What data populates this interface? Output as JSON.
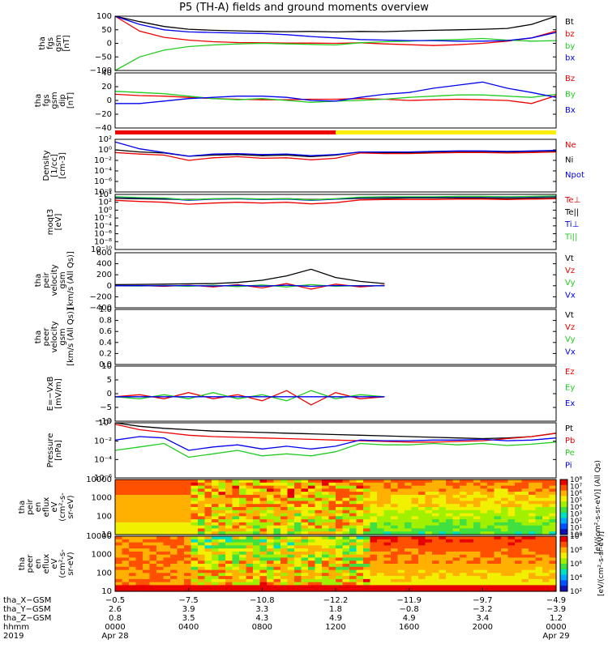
{
  "title": "P5 (TH-A) fields and ground moments overview",
  "colors": {
    "black": "#000000",
    "red": "#ee0000",
    "green": "#22cc22",
    "blue": "#0000ee",
    "yellow": "#ffee00"
  },
  "chart_data": [
    {
      "type": "line",
      "ylabel": [
        "tha",
        "fgs",
        "gsm",
        "[nT]"
      ],
      "yticks": [
        "100",
        "50",
        "0",
        "−50",
        "−100"
      ],
      "ylim": [
        -100,
        100
      ],
      "log": false,
      "series": [
        {
          "name": "Bt",
          "color": "#000000",
          "values": [
            100,
            80,
            62,
            52,
            48,
            46,
            44,
            43,
            44,
            42,
            44,
            43,
            46,
            48,
            50,
            52,
            55,
            70,
            100
          ]
        },
        {
          "name": "bz",
          "color": "#ee0000",
          "values": [
            100,
            45,
            22,
            12,
            6,
            3,
            2,
            1,
            1,
            0,
            2,
            -2,
            -5,
            -8,
            -5,
            0,
            8,
            20,
            45
          ]
        },
        {
          "name": "by",
          "color": "#22cc22",
          "values": [
            -100,
            -50,
            -25,
            -12,
            -6,
            -2,
            0,
            -2,
            -4,
            -6,
            2,
            6,
            8,
            12,
            14,
            18,
            12,
            8,
            10
          ]
        },
        {
          "name": "bx",
          "color": "#0000ee",
          "values": [
            100,
            70,
            50,
            42,
            40,
            38,
            36,
            32,
            25,
            20,
            14,
            12,
            10,
            10,
            8,
            8,
            10,
            20,
            40
          ]
        }
      ]
    },
    {
      "type": "line",
      "ylabel": [
        "tha",
        "fgs",
        "gsm",
        "dip",
        "[nT]"
      ],
      "yticks": [
        "40",
        "20",
        "0",
        "−20",
        "−40"
      ],
      "ylim": [
        -50,
        40
      ],
      "log": false,
      "series": [
        {
          "name": "Bz",
          "color": "#ee0000",
          "values": [
            5,
            3,
            2,
            0,
            -2,
            -3,
            -4,
            -4,
            -3,
            -3,
            -2,
            -3,
            -5,
            -4,
            -3,
            -4,
            -5,
            -10,
            3
          ]
        },
        {
          "name": "By",
          "color": "#22cc22",
          "values": [
            10,
            8,
            6,
            2,
            -2,
            -4,
            -2,
            -5,
            -8,
            -6,
            -5,
            -3,
            0,
            2,
            4,
            4,
            2,
            0,
            5
          ]
        },
        {
          "name": "Bx",
          "color": "#0000ee",
          "values": [
            -10,
            -10,
            -6,
            -2,
            0,
            2,
            2,
            0,
            -5,
            -6,
            0,
            5,
            8,
            15,
            20,
            25,
            15,
            8,
            0
          ]
        }
      ]
    },
    {
      "type": "line",
      "ylabel": [
        "Density",
        "[1/cc]",
        "[cm-3]"
      ],
      "yticks": [
        "10²",
        "10⁰",
        "10⁻²",
        "10⁻⁴",
        "10⁻⁶",
        "10⁻⁸"
      ],
      "ylim": [
        -8,
        2
      ],
      "log": true,
      "series": [
        {
          "name": "Ne",
          "color": "#ee0000",
          "values": [
            -0.5,
            -0.8,
            -1.0,
            -2.0,
            -1.5,
            -1.3,
            -1.6,
            -1.5,
            -1.9,
            -1.6,
            -0.6,
            -0.7,
            -0.7,
            -0.6,
            -0.5,
            -0.5,
            -0.6,
            -0.5,
            -0.4
          ]
        },
        {
          "name": "Ni",
          "color": "#000000",
          "values": [
            0.0,
            -0.4,
            -0.6,
            -1.2,
            -1.0,
            -0.9,
            -1.1,
            -1.0,
            -1.3,
            -1.0,
            -0.4,
            -0.5,
            -0.5,
            -0.4,
            -0.3,
            -0.3,
            -0.4,
            -0.3,
            -0.2
          ]
        },
        {
          "name": "Npot",
          "color": "#0000ee",
          "values": [
            1.5,
            0.2,
            -0.5,
            -1.2,
            -0.8,
            -0.7,
            -0.9,
            -0.8,
            -1.1,
            -0.9,
            -0.4,
            -0.4,
            -0.4,
            -0.3,
            -0.2,
            -0.2,
            -0.3,
            -0.2,
            -0.1
          ]
        }
      ]
    },
    {
      "type": "line",
      "ylabel": [
        "moqt3",
        "[eV]"
      ],
      "yticks": [
        "10⁴",
        "10²",
        "10⁰",
        "10⁻²",
        "10⁻⁴",
        "10⁻⁶",
        "10⁻⁸",
        "10⁻¹⁰"
      ],
      "ylim": [
        -10,
        4
      ],
      "log": true,
      "series": [
        {
          "name": "Te⊥",
          "color": "#ee0000",
          "values": [
            2.5,
            2.2,
            2.0,
            1.5,
            1.8,
            2.0,
            1.8,
            2.0,
            1.6,
            1.9,
            2.6,
            2.7,
            2.7,
            2.7,
            2.8,
            2.8,
            2.7,
            2.8,
            2.9
          ]
        },
        {
          "name": "Te||",
          "color": "#000000",
          "values": [
            3.0,
            2.9,
            2.8,
            2.7,
            2.8,
            2.9,
            2.8,
            2.9,
            2.7,
            2.8,
            3.0,
            3.0,
            3.1,
            3.1,
            3.1,
            3.1,
            3.0,
            3.1,
            3.2
          ]
        },
        {
          "name": "Ti⊥",
          "color": "#0000ee",
          "values": [
            3.3,
            3.1,
            3.0,
            2.5,
            2.8,
            2.9,
            2.7,
            2.8,
            2.5,
            2.8,
            3.2,
            3.3,
            3.3,
            3.3,
            3.4,
            3.4,
            3.3,
            3.4,
            3.5
          ]
        },
        {
          "name": "Ti||",
          "color": "#22cc22",
          "values": [
            3.4,
            3.2,
            3.1,
            2.6,
            2.9,
            3.0,
            2.8,
            2.9,
            2.6,
            2.9,
            3.3,
            3.4,
            3.4,
            3.4,
            3.5,
            3.5,
            3.4,
            3.5,
            3.6
          ]
        }
      ]
    },
    {
      "type": "line",
      "ylabel": [
        "tha",
        "peir",
        "velocity",
        "gsm",
        "[km/s (All Qs)]"
      ],
      "yticks": [
        "600",
        "400",
        "200",
        "0",
        "−200",
        "−400"
      ],
      "ylim": [
        -400,
        600
      ],
      "log": false,
      "series": [
        {
          "name": "Vt",
          "color": "#000000",
          "values": [
            20,
            25,
            30,
            35,
            40,
            60,
            100,
            180,
            300,
            150,
            80,
            40,
            null,
            null,
            null,
            null,
            null,
            null,
            null
          ]
        },
        {
          "name": "Vz",
          "color": "#ee0000",
          "values": [
            0,
            5,
            -10,
            10,
            -20,
            20,
            -40,
            40,
            -60,
            30,
            -20,
            10,
            null,
            null,
            null,
            null,
            null,
            null,
            null
          ]
        },
        {
          "name": "Vy",
          "color": "#22cc22",
          "values": [
            0,
            -5,
            5,
            -10,
            10,
            -15,
            15,
            -20,
            20,
            -10,
            5,
            0,
            null,
            null,
            null,
            null,
            null,
            null,
            null
          ]
        },
        {
          "name": "Vx",
          "color": "#0000ee",
          "values": [
            0,
            2,
            -2,
            5,
            -5,
            8,
            -8,
            10,
            -10,
            5,
            -2,
            0,
            null,
            null,
            null,
            null,
            null,
            null,
            null
          ]
        }
      ]
    },
    {
      "type": "line",
      "ylabel": [
        "tha",
        "peer",
        "velocity",
        "gsm",
        "[km/s (All Qs)]"
      ],
      "yticks": [
        "1.0",
        "0.8",
        "0.6",
        "0.4",
        "0.2",
        "0.0"
      ],
      "ylim": [
        0,
        1
      ],
      "log": false,
      "series": [
        {
          "name": "Vt",
          "color": "#000000",
          "values": []
        },
        {
          "name": "Vz",
          "color": "#ee0000",
          "values": []
        },
        {
          "name": "Vy",
          "color": "#22cc22",
          "values": []
        },
        {
          "name": "Vx",
          "color": "#0000ee",
          "values": []
        }
      ]
    },
    {
      "type": "line",
      "ylabel": [
        "E=−VxB",
        "[mV/m]"
      ],
      "yticks": [
        "10",
        "5",
        "0",
        "−5",
        "−10"
      ],
      "ylim": [
        -12,
        15
      ],
      "log": false,
      "series": [
        {
          "name": "Ez",
          "color": "#ee0000",
          "values": [
            0,
            1,
            -1,
            2,
            -1,
            1,
            -2,
            3,
            -4,
            2,
            -1,
            0,
            null,
            null,
            null,
            null,
            null,
            null,
            null
          ]
        },
        {
          "name": "Ey",
          "color": "#22cc22",
          "values": [
            0,
            -1,
            1,
            -1,
            2,
            -1,
            1,
            -2,
            3,
            -1,
            1,
            0,
            null,
            null,
            null,
            null,
            null,
            null,
            null
          ]
        },
        {
          "name": "Ex",
          "color": "#0000ee",
          "values": [
            0,
            0,
            0,
            0,
            0,
            0,
            0,
            0,
            0,
            0,
            0,
            0,
            null,
            null,
            null,
            null,
            null,
            null,
            null
          ]
        }
      ]
    },
    {
      "type": "line",
      "ylabel": [
        "Pressure",
        "[nPa]"
      ],
      "yticks": [
        "10⁰",
        "10⁻²",
        "10⁻⁴",
        "10⁻⁶"
      ],
      "ylim": [
        -7,
        1
      ],
      "log": true,
      "series": [
        {
          "name": "Pt",
          "color": "#000000",
          "values": [
            1.0,
            0.5,
            0.2,
            0.0,
            -0.2,
            -0.3,
            -0.4,
            -0.5,
            -0.6,
            -0.7,
            -0.8,
            -0.9,
            -1.0,
            -1.1,
            -1.2,
            -1.3,
            -1.2,
            -1.0,
            -0.5
          ]
        },
        {
          "name": "Pb",
          "color": "#ee0000",
          "values": [
            0.8,
            0.0,
            -0.4,
            -0.8,
            -1.0,
            -1.1,
            -1.2,
            -1.3,
            -1.4,
            -1.5,
            -1.6,
            -1.7,
            -1.8,
            -1.8,
            -1.7,
            -1.6,
            -1.3,
            -1.0,
            -0.5
          ]
        },
        {
          "name": "Pe",
          "color": "#22cc22",
          "values": [
            -3.0,
            -2.5,
            -2.0,
            -4.0,
            -3.5,
            -3.0,
            -3.8,
            -3.5,
            -3.8,
            -3.2,
            -2.0,
            -2.2,
            -2.2,
            -2.0,
            -2.2,
            -2.0,
            -2.3,
            -2.1,
            -1.8
          ]
        },
        {
          "name": "Pi",
          "color": "#0000ee",
          "values": [
            -1.5,
            -1.0,
            -1.2,
            -3.0,
            -2.5,
            -2.2,
            -2.8,
            -2.4,
            -2.8,
            -2.4,
            -1.5,
            -1.6,
            -1.6,
            -1.5,
            -1.5,
            -1.4,
            -1.6,
            -1.5,
            -1.2
          ]
        }
      ]
    },
    {
      "type": "heatmap",
      "ylabel": [
        "tha",
        "peir",
        "en",
        "eflux",
        "eV",
        "(cm²-s-",
        "sr-eV)"
      ],
      "yticks": [
        "10000",
        "1000",
        "100",
        "10"
      ],
      "colorbar_label": "[eV/(cm²-s-sr-eV)] (All Qs)",
      "colorbar_ticks": [
        "10⁸",
        "10⁷",
        "10⁶",
        "10⁵",
        "10⁴",
        "10³",
        "10²",
        "10¹",
        "10⁰"
      ]
    },
    {
      "type": "heatmap",
      "ylabel": [
        "tha",
        "peer",
        "en",
        "eflux",
        "eV",
        "(cm²-s-",
        "sr-eV)"
      ],
      "yticks": [
        "10000",
        "1000",
        "100",
        "10"
      ],
      "colorbar_label": "[eV/(cm²-s-sr-eV)]",
      "colorbar_ticks": [
        "10⁹",
        "10⁸",
        "10⁶",
        "10⁴",
        "10²"
      ]
    }
  ],
  "legends": [
    [
      "Bt",
      "bz",
      "by",
      "bx"
    ],
    [
      "Bz",
      "By",
      "Bx"
    ],
    [
      "Ne",
      "Ni",
      "Npot"
    ],
    [
      "Te⊥",
      "Te||",
      "Ti⊥",
      "Ti||"
    ],
    [
      "Vt",
      "Vz",
      "Vy",
      "Vx"
    ],
    [
      "Vt",
      "Vz",
      "Vy",
      "Vx"
    ],
    [
      "Ez",
      "Ey",
      "Ex"
    ],
    [
      "Pt",
      "Pb",
      "Pe",
      "Pi"
    ]
  ],
  "legend_colors": [
    [
      "#000000",
      "#ee0000",
      "#22cc22",
      "#0000ee"
    ],
    [
      "#ee0000",
      "#22cc22",
      "#0000ee"
    ],
    [
      "#ee0000",
      "#000000",
      "#0000ee"
    ],
    [
      "#ee0000",
      "#000000",
      "#0000ee",
      "#22cc22"
    ],
    [
      "#000000",
      "#ee0000",
      "#22cc22",
      "#0000ee"
    ],
    [
      "#000000",
      "#ee0000",
      "#22cc22",
      "#0000ee"
    ],
    [
      "#ee0000",
      "#22cc22",
      "#0000ee"
    ],
    [
      "#000000",
      "#ee0000",
      "#22cc22",
      "#0000ee"
    ]
  ],
  "mode_bar": {
    "red_until": 0.5,
    "after": "#ffee00"
  },
  "xaxis": {
    "rows": [
      {
        "label": "tha_X−GSM",
        "values": [
          "−0.5",
          "−7.5",
          "−10.8",
          "−12.2",
          "−11.9",
          "−9.7",
          "−4.9"
        ]
      },
      {
        "label": "tha_Y−GSM",
        "values": [
          "2.6",
          "3.9",
          "3.3",
          "1.8",
          "−0.8",
          "−3.2",
          "−3.9"
        ]
      },
      {
        "label": "tha_Z−GSM",
        "values": [
          "0.8",
          "3.5",
          "4.3",
          "4.9",
          "4.9",
          "3.4",
          "1.2"
        ]
      },
      {
        "label": "hhmm",
        "values": [
          "0000",
          "0400",
          "0800",
          "1200",
          "1600",
          "2000",
          "0000"
        ]
      },
      {
        "label": "2019",
        "values": [
          "Apr 28",
          "",
          "",
          "",
          "",
          "",
          "Apr 29"
        ]
      }
    ]
  }
}
